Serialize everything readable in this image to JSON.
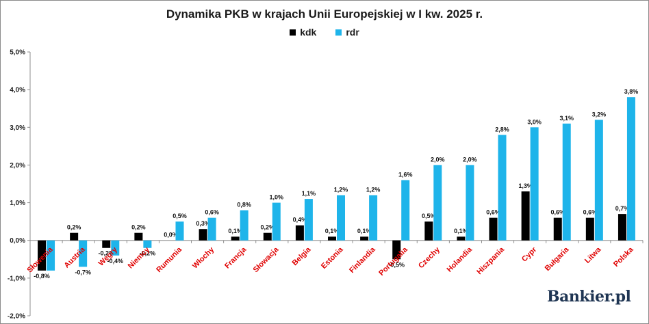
{
  "chart_data": {
    "type": "bar",
    "title": "Dynamika PKB w krajach Unii Europejskiej w I kw. 2025 r.",
    "xlabel": "",
    "ylabel": "",
    "ylim": [
      -2.0,
      5.0
    ],
    "yticks": [
      -2.0,
      -1.0,
      0.0,
      1.0,
      2.0,
      3.0,
      4.0,
      5.0
    ],
    "ytick_labels": [
      "-2,0%",
      "-1,0%",
      "0,0%",
      "1,0%",
      "2,0%",
      "3,0%",
      "4,0%",
      "5,0%"
    ],
    "legend_position": "top-center",
    "grid": false,
    "categories": [
      "Słowenia",
      "Austria",
      "Węgry",
      "Niemcy",
      "Rumunia",
      "Włochy",
      "Francja",
      "Słowacja",
      "Belgia",
      "Estonia",
      "Finlandia",
      "Portugalia",
      "Czechy",
      "Holandia",
      "Hiszpania",
      "Cypr",
      "Bułgaria",
      "Litwa",
      "Polska"
    ],
    "series": [
      {
        "name": "kdk",
        "color": "#000000",
        "values": [
          -0.8,
          0.2,
          -0.2,
          0.2,
          null,
          0.3,
          0.1,
          0.2,
          0.4,
          0.1,
          0.1,
          -0.5,
          0.5,
          0.1,
          0.6,
          1.3,
          0.6,
          0.6,
          0.7
        ],
        "labels": [
          "-0,8%",
          "0,2%",
          "-0,2%",
          "0,2%",
          "0,0%",
          "0,3%",
          "0,1%",
          "0,2%",
          "0,4%",
          "0,1%",
          "0,1%",
          "-0,5%",
          "0,5%",
          "0,1%",
          "0,6%",
          "1,3%",
          "0,6%",
          "0,6%",
          "0,7%"
        ]
      },
      {
        "name": "rdr",
        "color": "#1eb4ea",
        "values": [
          -0.8,
          -0.7,
          -0.4,
          -0.2,
          0.5,
          0.6,
          0.8,
          1.0,
          1.1,
          1.2,
          1.2,
          1.6,
          2.0,
          2.0,
          2.8,
          3.0,
          3.1,
          3.2,
          3.8
        ],
        "labels": [
          "",
          "-0,7%",
          "-0,4%",
          "-0,2%",
          "0,5%",
          "0,6%",
          "0,8%",
          "1,0%",
          "1,1%",
          "1,2%",
          "1,2%",
          "1,6%",
          "2,0%",
          "2,0%",
          "2,8%",
          "3,0%",
          "3,1%",
          "3,2%",
          "3,8%"
        ]
      }
    ],
    "category_label_color": "#e00000"
  },
  "branding": {
    "logo_text": "Bankier.pl"
  }
}
